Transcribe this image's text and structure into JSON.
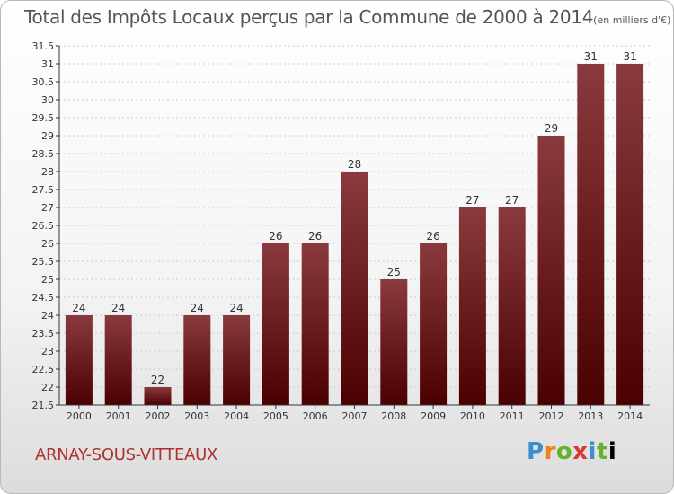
{
  "title": "Total des Impôts Locaux perçus par la Commune de 2000 à 2014",
  "subtitle": "(en milliers d'€)",
  "commune": "ARNAY-SOUS-VITTEAUX",
  "logo": {
    "text": "Proxiti"
  },
  "colors": {
    "bar_top": "#8a3a3e",
    "bar_bottom": "#4a0000",
    "axis": "#333333",
    "grid": "#cccccc",
    "commune_text": "#b03030"
  },
  "chart_data": {
    "type": "bar",
    "categories": [
      "2000",
      "2001",
      "2002",
      "2003",
      "2004",
      "2005",
      "2006",
      "2007",
      "2008",
      "2009",
      "2010",
      "2011",
      "2012",
      "2013",
      "2014"
    ],
    "values": [
      24,
      24,
      22,
      24,
      24,
      26,
      26,
      28,
      25,
      26,
      27,
      27,
      29,
      31,
      31
    ],
    "data_labels": [
      "24",
      "24",
      "22",
      "24",
      "24",
      "26",
      "26",
      "28",
      "25",
      "26",
      "27",
      "27",
      "29",
      "31",
      "31"
    ],
    "ylim": [
      21.5,
      31.5
    ],
    "yticks": [
      "21.5",
      "22",
      "22.5",
      "23",
      "23.5",
      "24",
      "24.5",
      "25",
      "25.5",
      "26",
      "26.5",
      "27",
      "27.5",
      "28",
      "28.5",
      "29",
      "29.5",
      "30",
      "30.5",
      "31",
      "31.5"
    ],
    "ytick_values": [
      21.5,
      22,
      22.5,
      23,
      23.5,
      24,
      24.5,
      25,
      25.5,
      26,
      26.5,
      27,
      27.5,
      28,
      28.5,
      29,
      29.5,
      30,
      30.5,
      31,
      31.5
    ],
    "grid": true,
    "legend": "none"
  }
}
